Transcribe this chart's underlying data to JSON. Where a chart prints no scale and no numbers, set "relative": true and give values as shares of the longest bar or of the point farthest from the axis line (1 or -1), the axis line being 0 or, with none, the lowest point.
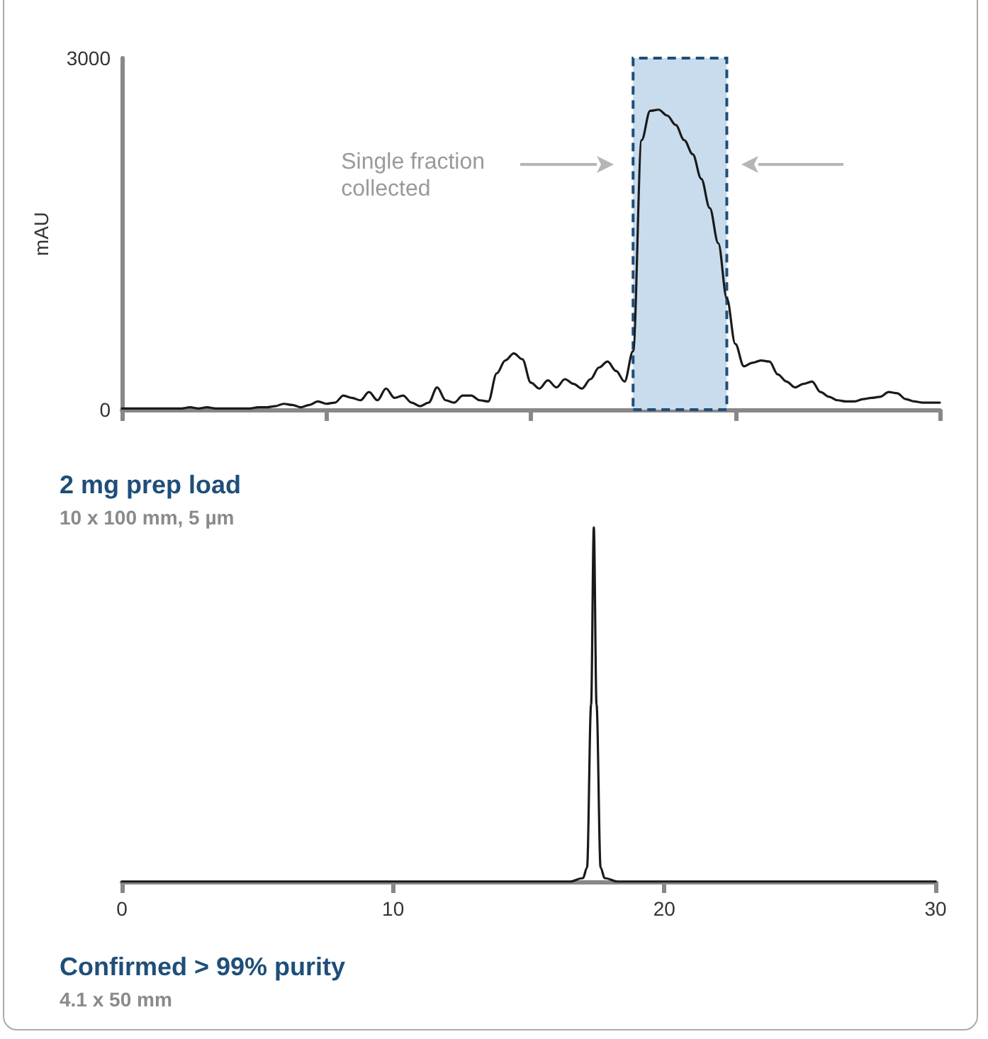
{
  "chart_data": [
    {
      "type": "line",
      "title": "2 mg prep load",
      "subtitle": "10 x 100 mm, 5 µm",
      "ylabel": "mAU",
      "color": "#1a1a1a",
      "categories": [
        null,
        null,
        null,
        null,
        null,
        null,
        null,
        null,
        null,
        null,
        null,
        null,
        null,
        null,
        null,
        null,
        null,
        null,
        null,
        null,
        null,
        null,
        null,
        null,
        null,
        null,
        null,
        null,
        null,
        null,
        null,
        null,
        null,
        null,
        null,
        null,
        null,
        null,
        null,
        null,
        null,
        null,
        null,
        null,
        null,
        null,
        null,
        null,
        null,
        null,
        null,
        null,
        null,
        null,
        null,
        null,
        null,
        null,
        null,
        null,
        null,
        null,
        null,
        null,
        null,
        null,
        null,
        null,
        null,
        null,
        null,
        null,
        null,
        null,
        null,
        null,
        null,
        null,
        null,
        null,
        null,
        null,
        null,
        null,
        null,
        null,
        null,
        null,
        null,
        null,
        null,
        null,
        null,
        null,
        null,
        null,
        null
      ],
      "values": [
        10,
        10,
        10,
        10,
        10,
        10,
        10,
        10,
        20,
        10,
        20,
        10,
        10,
        10,
        10,
        10,
        20,
        20,
        30,
        50,
        40,
        20,
        40,
        70,
        50,
        60,
        120,
        100,
        80,
        150,
        80,
        180,
        100,
        120,
        60,
        30,
        60,
        190,
        80,
        60,
        120,
        120,
        80,
        70,
        310,
        420,
        480,
        430,
        230,
        180,
        250,
        190,
        260,
        220,
        180,
        260,
        360,
        410,
        330,
        240,
        500,
        2300,
        2550,
        2560,
        2510,
        2430,
        2300,
        2180,
        1970,
        1720,
        1420,
        950,
        560,
        370,
        400,
        420,
        410,
        300,
        240,
        190,
        220,
        240,
        150,
        110,
        80,
        70,
        70,
        90,
        100,
        110,
        150,
        140,
        90,
        70,
        60,
        60,
        60
      ],
      "ylim": [
        0,
        3000
      ],
      "yticks": [
        0,
        3000
      ],
      "tick_labels": "y",
      "grid": false,
      "marker": "none",
      "line_style": "solid",
      "annotations": [
        "Single fraction collected"
      ]
    },
    {
      "type": "line",
      "title": "Confirmed > 99% purity",
      "subtitle": "4.1 x 50 mm",
      "color": "#1a1a1a",
      "relative": true,
      "x": [
        0,
        16.5,
        17.0,
        17.15,
        17.3,
        17.4,
        17.5,
        17.65,
        17.8,
        18.3,
        30
      ],
      "values": [
        0,
        0,
        0.01,
        0.04,
        0.5,
        1,
        0.5,
        0.04,
        0.01,
        0,
        0
      ],
      "xlim": [
        0,
        30
      ],
      "xticks": [
        0,
        10,
        20,
        30
      ],
      "tick_labels": "x",
      "grid": false,
      "marker": "none",
      "line_style": "solid"
    }
  ]
}
